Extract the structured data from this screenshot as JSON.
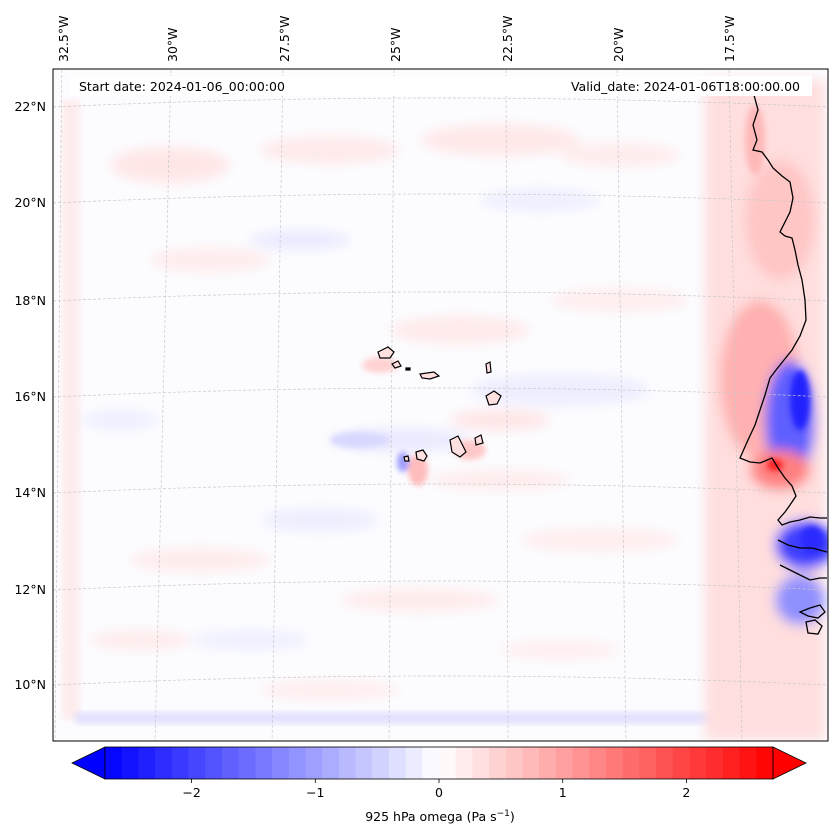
{
  "header": {
    "start_date": "Start date: 2024-01-06_00:00:00",
    "valid_date": "Valid_date: 2024-01-06T18:00:00.00"
  },
  "map": {
    "variable_colormap": "bwr",
    "lon_labels": [
      "32.5°W",
      "30°W",
      "27.5°W",
      "25°W",
      "22.5°W",
      "20°W",
      "17.5°W"
    ],
    "lat_labels": [
      "22°N",
      "20°N",
      "18°N",
      "16°N",
      "14°N",
      "12°N",
      "10°N"
    ],
    "gridlines": true
  },
  "colorbar": {
    "label": "925 hPa omega (Pa s",
    "label_sup": "−1",
    "label_close": ")",
    "ticks": [
      "−2",
      "−1",
      "0",
      "1",
      "2"
    ],
    "min": -2.7,
    "max": 2.7,
    "extend": "both",
    "colors": {
      "low": "#0000ff",
      "mid": "#ffffff",
      "high": "#ff0000"
    }
  }
}
